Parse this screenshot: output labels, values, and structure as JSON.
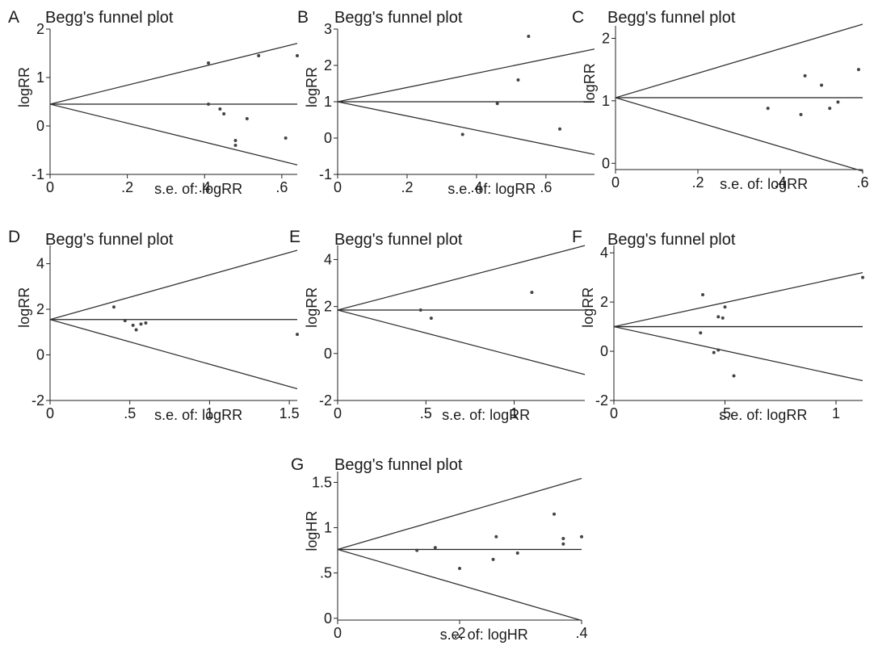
{
  "figure": {
    "background": "#ffffff",
    "ink_color": "#222222"
  },
  "chart_data": [
    {
      "panel": "A",
      "type": "scatter",
      "title": "Begg's funnel plot",
      "xlabel": "s.e. of: logRR",
      "ylabel": "logRR",
      "xlim": [
        0,
        0.64
      ],
      "ylim": [
        -1,
        2
      ],
      "xticks": [
        0,
        0.2,
        0.4,
        0.6
      ],
      "xtick_labels": [
        "0",
        ".2",
        ".4",
        ".6"
      ],
      "yticks": [
        -1,
        0,
        1,
        2
      ],
      "ytick_labels": [
        "-1",
        "0",
        "1",
        "2"
      ],
      "pooled": 0.45,
      "points": [
        {
          "x": 0.41,
          "y": 1.3
        },
        {
          "x": 0.54,
          "y": 1.45
        },
        {
          "x": 0.64,
          "y": 1.45
        },
        {
          "x": 0.41,
          "y": 0.45
        },
        {
          "x": 0.44,
          "y": 0.35
        },
        {
          "x": 0.45,
          "y": 0.25
        },
        {
          "x": 0.51,
          "y": 0.15
        },
        {
          "x": 0.48,
          "y": -0.3
        },
        {
          "x": 0.48,
          "y": -0.4
        },
        {
          "x": 0.61,
          "y": -0.25
        }
      ]
    },
    {
      "panel": "B",
      "type": "scatter",
      "title": "Begg's funnel plot",
      "xlabel": "s.e. of: logRR",
      "ylabel": "logRR",
      "xlim": [
        0,
        0.74
      ],
      "ylim": [
        -1,
        3
      ],
      "xticks": [
        0,
        0.2,
        0.4,
        0.6
      ],
      "xtick_labels": [
        "0",
        ".2",
        ".4",
        ".6"
      ],
      "yticks": [
        -1,
        0,
        1,
        2,
        3
      ],
      "ytick_labels": [
        "-1",
        "0",
        "1",
        "2",
        "3"
      ],
      "pooled": 1.0,
      "points": [
        {
          "x": 0.55,
          "y": 2.8
        },
        {
          "x": 0.52,
          "y": 1.6
        },
        {
          "x": 0.46,
          "y": 0.95
        },
        {
          "x": 0.36,
          "y": 0.1
        },
        {
          "x": 0.64,
          "y": 0.25
        }
      ]
    },
    {
      "panel": "C",
      "type": "scatter",
      "title": "Begg's funnel plot",
      "xlabel": "s.e. of: logRR",
      "ylabel": "logRR",
      "xlim": [
        0,
        0.6
      ],
      "ylim": [
        -0.1,
        2.2
      ],
      "xticks": [
        0,
        0.2,
        0.4,
        0.6
      ],
      "xtick_labels": [
        "0",
        ".2",
        ".4",
        ".6"
      ],
      "yticks": [
        0,
        1,
        2
      ],
      "ytick_labels": [
        "0",
        "1",
        "2"
      ],
      "pooled": 1.05,
      "points": [
        {
          "x": 0.59,
          "y": 1.5
        },
        {
          "x": 0.46,
          "y": 1.4
        },
        {
          "x": 0.5,
          "y": 1.25
        },
        {
          "x": 0.54,
          "y": 0.98
        },
        {
          "x": 0.52,
          "y": 0.88
        },
        {
          "x": 0.37,
          "y": 0.88
        },
        {
          "x": 0.45,
          "y": 0.78
        }
      ]
    },
    {
      "panel": "D",
      "type": "scatter",
      "title": "Begg's funnel plot",
      "xlabel": "s.e. of: logRR",
      "ylabel": "logRR",
      "xlim": [
        0,
        1.55
      ],
      "ylim": [
        -2,
        4.8
      ],
      "xticks": [
        0,
        0.5,
        1,
        1.5
      ],
      "xtick_labels": [
        "0",
        ".5",
        "1",
        "1.5"
      ],
      "yticks": [
        -2,
        0,
        2,
        4
      ],
      "ytick_labels": [
        "-2",
        "0",
        "2",
        "4"
      ],
      "pooled": 1.55,
      "points": [
        {
          "x": 0.4,
          "y": 2.1
        },
        {
          "x": 0.47,
          "y": 1.5
        },
        {
          "x": 0.52,
          "y": 1.3
        },
        {
          "x": 0.54,
          "y": 1.1
        },
        {
          "x": 0.57,
          "y": 1.35
        },
        {
          "x": 0.6,
          "y": 1.4
        },
        {
          "x": 1.55,
          "y": 0.9
        }
      ]
    },
    {
      "panel": "E",
      "type": "scatter",
      "title": "Begg's funnel plot",
      "xlabel": "s.e. of: logRR",
      "ylabel": "logRR",
      "xlim": [
        0,
        1.4
      ],
      "ylim": [
        -2,
        4.6
      ],
      "xticks": [
        0,
        0.5,
        1
      ],
      "xtick_labels": [
        "0",
        ".5",
        "1"
      ],
      "yticks": [
        -2,
        0,
        2,
        4
      ],
      "ytick_labels": [
        "-2",
        "0",
        "2",
        "4"
      ],
      "pooled": 1.85,
      "points": [
        {
          "x": 0.47,
          "y": 1.85
        },
        {
          "x": 0.53,
          "y": 1.5
        },
        {
          "x": 1.1,
          "y": 2.6
        }
      ]
    },
    {
      "panel": "F",
      "type": "scatter",
      "title": "Begg's funnel plot",
      "xlabel": "s.e. of: logRR",
      "ylabel": "logRR",
      "xlim": [
        0,
        1.12
      ],
      "ylim": [
        -2,
        4.3
      ],
      "xticks": [
        0,
        0.5,
        1
      ],
      "xtick_labels": [
        "0",
        ".5",
        "1"
      ],
      "yticks": [
        -2,
        0,
        2,
        4
      ],
      "ytick_labels": [
        "-2",
        "0",
        "2",
        "4"
      ],
      "pooled": 1.0,
      "points": [
        {
          "x": 1.12,
          "y": 3.0
        },
        {
          "x": 0.4,
          "y": 2.3
        },
        {
          "x": 0.5,
          "y": 1.8
        },
        {
          "x": 0.47,
          "y": 1.4
        },
        {
          "x": 0.49,
          "y": 1.35
        },
        {
          "x": 0.39,
          "y": 0.75
        },
        {
          "x": 0.47,
          "y": 0.05
        },
        {
          "x": 0.45,
          "y": -0.05
        },
        {
          "x": 0.54,
          "y": -1.0
        }
      ]
    },
    {
      "panel": "G",
      "type": "scatter",
      "title": "Begg's funnel plot",
      "xlabel": "s.e. of: logHR",
      "ylabel": "logHR",
      "xlim": [
        0,
        0.4
      ],
      "ylim": [
        -0.02,
        1.62
      ],
      "xticks": [
        0,
        0.2,
        0.4
      ],
      "xtick_labels": [
        "0",
        ".2",
        ".4"
      ],
      "yticks": [
        0,
        0.5,
        1,
        1.5
      ],
      "ytick_labels": [
        "0",
        ".5",
        "1",
        "1.5"
      ],
      "pooled": 0.76,
      "points": [
        {
          "x": 0.13,
          "y": 0.75
        },
        {
          "x": 0.16,
          "y": 0.78
        },
        {
          "x": 0.2,
          "y": 0.55
        },
        {
          "x": 0.26,
          "y": 0.9
        },
        {
          "x": 0.255,
          "y": 0.65
        },
        {
          "x": 0.295,
          "y": 0.72
        },
        {
          "x": 0.355,
          "y": 1.15
        },
        {
          "x": 0.37,
          "y": 0.88
        },
        {
          "x": 0.37,
          "y": 0.82
        },
        {
          "x": 0.4,
          "y": 0.9
        }
      ]
    }
  ]
}
